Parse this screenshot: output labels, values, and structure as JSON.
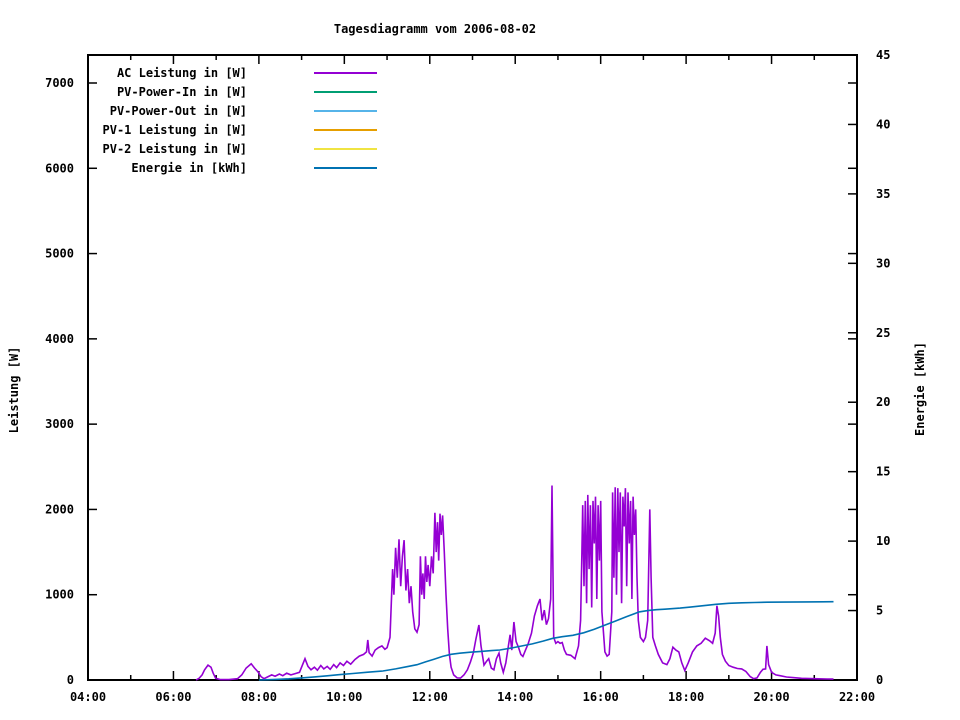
{
  "chart_data": {
    "type": "line",
    "title": "Tagesdiagramm vom 2006-08-02",
    "grid": false,
    "legend": {
      "position": "top-left"
    },
    "x_axis": {
      "unit": "time-of-day",
      "range_hours": [
        4,
        22
      ],
      "major_tick_hours": 2,
      "minor_tick_hours": 1,
      "tick_labels": [
        "04:00",
        "06:00",
        "08:00",
        "10:00",
        "12:00",
        "14:00",
        "16:00",
        "18:00",
        "20:00",
        "22:00"
      ]
    },
    "y_axis": {
      "label": "Leistung [W]",
      "range": [
        0,
        7000
      ],
      "tick_step": 1000,
      "tick_labels": [
        "0",
        "1000",
        "2000",
        "3000",
        "4000",
        "5000",
        "6000",
        "7000"
      ]
    },
    "y2_axis": {
      "label": "Energie [kWh]",
      "range": [
        0,
        45
      ],
      "tick_step": 5,
      "tick_labels": [
        "0",
        "5",
        "10",
        "15",
        "20",
        "25",
        "30",
        "35",
        "40",
        "45"
      ]
    },
    "series": [
      {
        "name": "AC Leistung in [W]",
        "color": "#9400D3",
        "axis": "y1",
        "visible_in_plot": true,
        "points": [
          [
            6.53,
            0
          ],
          [
            6.6,
            20
          ],
          [
            6.67,
            60
          ],
          [
            6.73,
            120
          ],
          [
            6.81,
            175
          ],
          [
            6.88,
            150
          ],
          [
            6.93,
            80
          ],
          [
            6.99,
            20
          ],
          [
            7.1,
            5
          ],
          [
            7.3,
            5
          ],
          [
            7.5,
            15
          ],
          [
            7.6,
            60
          ],
          [
            7.7,
            140
          ],
          [
            7.82,
            190
          ],
          [
            7.9,
            140
          ],
          [
            7.98,
            95
          ],
          [
            8.05,
            40
          ],
          [
            8.12,
            15
          ],
          [
            8.2,
            35
          ],
          [
            8.3,
            60
          ],
          [
            8.38,
            45
          ],
          [
            8.48,
            70
          ],
          [
            8.56,
            50
          ],
          [
            8.65,
            80
          ],
          [
            8.75,
            60
          ],
          [
            8.85,
            75
          ],
          [
            8.95,
            90
          ],
          [
            9.08,
            250
          ],
          [
            9.15,
            160
          ],
          [
            9.22,
            120
          ],
          [
            9.3,
            150
          ],
          [
            9.37,
            115
          ],
          [
            9.45,
            170
          ],
          [
            9.52,
            130
          ],
          [
            9.6,
            160
          ],
          [
            9.67,
            125
          ],
          [
            9.75,
            180
          ],
          [
            9.82,
            145
          ],
          [
            9.9,
            200
          ],
          [
            9.98,
            170
          ],
          [
            10.06,
            220
          ],
          [
            10.15,
            185
          ],
          [
            10.25,
            240
          ],
          [
            10.35,
            280
          ],
          [
            10.45,
            300
          ],
          [
            10.52,
            330
          ],
          [
            10.55,
            470
          ],
          [
            10.58,
            320
          ],
          [
            10.65,
            280
          ],
          [
            10.72,
            350
          ],
          [
            10.8,
            380
          ],
          [
            10.88,
            400
          ],
          [
            10.95,
            360
          ],
          [
            11.0,
            380
          ],
          [
            11.07,
            500
          ],
          [
            11.1,
            900
          ],
          [
            11.13,
            1300
          ],
          [
            11.16,
            1000
          ],
          [
            11.2,
            1550
          ],
          [
            11.24,
            1200
          ],
          [
            11.28,
            1650
          ],
          [
            11.32,
            1100
          ],
          [
            11.36,
            1450
          ],
          [
            11.4,
            1640
          ],
          [
            11.44,
            1050
          ],
          [
            11.48,
            1300
          ],
          [
            11.52,
            900
          ],
          [
            11.56,
            1100
          ],
          [
            11.6,
            800
          ],
          [
            11.65,
            600
          ],
          [
            11.7,
            560
          ],
          [
            11.75,
            650
          ],
          [
            11.78,
            1450
          ],
          [
            11.81,
            1000
          ],
          [
            11.84,
            1250
          ],
          [
            11.87,
            950
          ],
          [
            11.9,
            1450
          ],
          [
            11.93,
            1150
          ],
          [
            11.96,
            1350
          ],
          [
            12.0,
            1100
          ],
          [
            12.04,
            1450
          ],
          [
            12.08,
            1250
          ],
          [
            12.12,
            1960
          ],
          [
            12.15,
            1500
          ],
          [
            12.18,
            1850
          ],
          [
            12.21,
            1400
          ],
          [
            12.24,
            1950
          ],
          [
            12.27,
            1700
          ],
          [
            12.3,
            1930
          ],
          [
            12.34,
            1500
          ],
          [
            12.38,
            1000
          ],
          [
            12.42,
            600
          ],
          [
            12.46,
            300
          ],
          [
            12.5,
            150
          ],
          [
            12.56,
            60
          ],
          [
            12.64,
            25
          ],
          [
            12.72,
            22
          ],
          [
            12.8,
            60
          ],
          [
            12.88,
            120
          ],
          [
            12.95,
            210
          ],
          [
            13.02,
            320
          ],
          [
            13.08,
            480
          ],
          [
            13.15,
            645
          ],
          [
            13.2,
            400
          ],
          [
            13.27,
            175
          ],
          [
            13.33,
            220
          ],
          [
            13.38,
            250
          ],
          [
            13.44,
            140
          ],
          [
            13.5,
            120
          ],
          [
            13.56,
            250
          ],
          [
            13.62,
            315
          ],
          [
            13.66,
            200
          ],
          [
            13.72,
            90
          ],
          [
            13.78,
            200
          ],
          [
            13.84,
            400
          ],
          [
            13.88,
            530
          ],
          [
            13.92,
            350
          ],
          [
            13.97,
            680
          ],
          [
            14.02,
            450
          ],
          [
            14.08,
            380
          ],
          [
            14.13,
            300
          ],
          [
            14.18,
            275
          ],
          [
            14.24,
            350
          ],
          [
            14.3,
            420
          ],
          [
            14.38,
            550
          ],
          [
            14.45,
            750
          ],
          [
            14.52,
            870
          ],
          [
            14.58,
            950
          ],
          [
            14.63,
            700
          ],
          [
            14.68,
            820
          ],
          [
            14.73,
            650
          ],
          [
            14.78,
            720
          ],
          [
            14.83,
            950
          ],
          [
            14.86,
            2280
          ],
          [
            14.9,
            500
          ],
          [
            14.95,
            430
          ],
          [
            15.0,
            450
          ],
          [
            15.05,
            430
          ],
          [
            15.1,
            440
          ],
          [
            15.15,
            350
          ],
          [
            15.2,
            300
          ],
          [
            15.3,
            290
          ],
          [
            15.4,
            250
          ],
          [
            15.48,
            400
          ],
          [
            15.53,
            700
          ],
          [
            15.56,
            1500
          ],
          [
            15.58,
            2050
          ],
          [
            15.61,
            1100
          ],
          [
            15.64,
            2100
          ],
          [
            15.67,
            900
          ],
          [
            15.7,
            2170
          ],
          [
            15.73,
            1300
          ],
          [
            15.76,
            2050
          ],
          [
            15.79,
            850
          ],
          [
            15.82,
            2100
          ],
          [
            15.85,
            1600
          ],
          [
            15.88,
            2150
          ],
          [
            15.91,
            950
          ],
          [
            15.94,
            2050
          ],
          [
            15.97,
            1400
          ],
          [
            16.0,
            2100
          ],
          [
            16.03,
            800
          ],
          [
            16.06,
            600
          ],
          [
            16.1,
            330
          ],
          [
            16.15,
            280
          ],
          [
            16.2,
            300
          ],
          [
            16.26,
            800
          ],
          [
            16.28,
            2200
          ],
          [
            16.31,
            1200
          ],
          [
            16.34,
            2260
          ],
          [
            16.37,
            1000
          ],
          [
            16.4,
            2250
          ],
          [
            16.43,
            1500
          ],
          [
            16.46,
            2200
          ],
          [
            16.49,
            900
          ],
          [
            16.52,
            2150
          ],
          [
            16.55,
            1800
          ],
          [
            16.58,
            2250
          ],
          [
            16.61,
            1100
          ],
          [
            16.64,
            2200
          ],
          [
            16.67,
            1600
          ],
          [
            16.7,
            2100
          ],
          [
            16.73,
            950
          ],
          [
            16.76,
            2150
          ],
          [
            16.79,
            1700
          ],
          [
            16.82,
            2000
          ],
          [
            16.85,
            1200
          ],
          [
            16.88,
            700
          ],
          [
            16.93,
            500
          ],
          [
            17.0,
            450
          ],
          [
            17.05,
            500
          ],
          [
            17.1,
            700
          ],
          [
            17.15,
            2000
          ],
          [
            17.18,
            1200
          ],
          [
            17.22,
            500
          ],
          [
            17.28,
            400
          ],
          [
            17.35,
            300
          ],
          [
            17.45,
            200
          ],
          [
            17.55,
            180
          ],
          [
            17.62,
            250
          ],
          [
            17.69,
            385
          ],
          [
            17.76,
            350
          ],
          [
            17.83,
            330
          ],
          [
            17.9,
            200
          ],
          [
            17.97,
            110
          ],
          [
            18.05,
            200
          ],
          [
            18.15,
            330
          ],
          [
            18.25,
            400
          ],
          [
            18.35,
            430
          ],
          [
            18.45,
            490
          ],
          [
            18.55,
            460
          ],
          [
            18.62,
            430
          ],
          [
            18.68,
            550
          ],
          [
            18.72,
            870
          ],
          [
            18.76,
            750
          ],
          [
            18.8,
            500
          ],
          [
            18.85,
            300
          ],
          [
            18.92,
            220
          ],
          [
            19.0,
            170
          ],
          [
            19.1,
            150
          ],
          [
            19.2,
            135
          ],
          [
            19.3,
            130
          ],
          [
            19.4,
            100
          ],
          [
            19.5,
            40
          ],
          [
            19.58,
            15
          ],
          [
            19.66,
            25
          ],
          [
            19.74,
            90
          ],
          [
            19.8,
            125
          ],
          [
            19.86,
            130
          ],
          [
            19.89,
            400
          ],
          [
            19.93,
            180
          ],
          [
            20.0,
            90
          ],
          [
            20.1,
            60
          ],
          [
            20.2,
            50
          ],
          [
            20.35,
            35
          ],
          [
            20.5,
            28
          ],
          [
            20.7,
            20
          ],
          [
            20.9,
            16
          ],
          [
            21.1,
            14
          ],
          [
            21.3,
            12
          ],
          [
            21.45,
            10
          ]
        ]
      },
      {
        "name": "PV-Power-In in [W]",
        "color": "#009E73",
        "axis": "y1",
        "visible_in_plot": false,
        "points": []
      },
      {
        "name": "PV-Power-Out in [W]",
        "color": "#56B4E9",
        "axis": "y1",
        "visible_in_plot": false,
        "points": []
      },
      {
        "name": "PV-1 Leistung in [W]",
        "color": "#E69F00",
        "axis": "y1",
        "visible_in_plot": false,
        "points": []
      },
      {
        "name": "PV-2 Leistung in [W]",
        "color": "#F0E442",
        "axis": "y1",
        "visible_in_plot": false,
        "points": []
      },
      {
        "name": "Energie in [kWh]",
        "color": "#0072B2",
        "axis": "y2",
        "visible_in_plot": true,
        "points": [
          [
            8.0,
            0.0
          ],
          [
            8.4,
            0.04
          ],
          [
            8.7,
            0.09
          ],
          [
            9.0,
            0.15
          ],
          [
            9.3,
            0.22
          ],
          [
            9.6,
            0.3
          ],
          [
            9.9,
            0.39
          ],
          [
            10.2,
            0.47
          ],
          [
            10.55,
            0.56
          ],
          [
            10.9,
            0.65
          ],
          [
            11.2,
            0.8
          ],
          [
            11.45,
            0.95
          ],
          [
            11.7,
            1.1
          ],
          [
            11.9,
            1.3
          ],
          [
            12.1,
            1.5
          ],
          [
            12.3,
            1.7
          ],
          [
            12.5,
            1.85
          ],
          [
            12.7,
            1.93
          ],
          [
            12.95,
            2.0
          ],
          [
            13.2,
            2.06
          ],
          [
            13.45,
            2.12
          ],
          [
            13.64,
            2.16
          ],
          [
            13.9,
            2.3
          ],
          [
            14.15,
            2.45
          ],
          [
            14.4,
            2.6
          ],
          [
            14.65,
            2.8
          ],
          [
            14.88,
            3.0
          ],
          [
            15.1,
            3.12
          ],
          [
            15.35,
            3.22
          ],
          [
            15.6,
            3.4
          ],
          [
            15.85,
            3.65
          ],
          [
            16.1,
            3.95
          ],
          [
            16.35,
            4.25
          ],
          [
            16.6,
            4.55
          ],
          [
            16.9,
            4.9
          ],
          [
            17.1,
            5.0
          ],
          [
            17.3,
            5.06
          ],
          [
            17.5,
            5.1
          ],
          [
            17.86,
            5.18
          ],
          [
            18.1,
            5.25
          ],
          [
            18.4,
            5.35
          ],
          [
            18.7,
            5.45
          ],
          [
            19.0,
            5.52
          ],
          [
            19.3,
            5.56
          ],
          [
            19.6,
            5.58
          ],
          [
            19.9,
            5.6
          ],
          [
            20.3,
            5.61
          ],
          [
            20.8,
            5.62
          ],
          [
            21.2,
            5.63
          ],
          [
            21.45,
            5.64
          ]
        ]
      }
    ],
    "colors": {
      "background": "#FFFFFF",
      "axes_and_text": "#000000"
    }
  }
}
